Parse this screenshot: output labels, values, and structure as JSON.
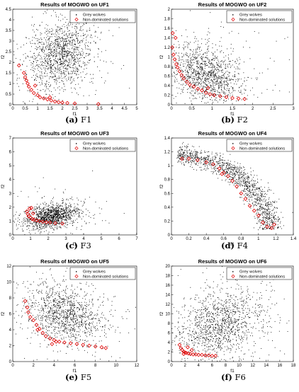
{
  "chart_data": [
    {
      "type": "scatter",
      "title": "Results of MOGWO on UF1",
      "xlabel": "f1",
      "ylabel": "f2",
      "xlim": [
        0,
        5
      ],
      "ylim": [
        0,
        4.5
      ],
      "xticks": [
        "0",
        "0.5",
        "1",
        "1.5",
        "2",
        "2.5",
        "3",
        "3.5",
        "4",
        "4.5",
        "5"
      ],
      "yticks": [
        "0",
        "0.5",
        "1",
        "1.5",
        "2",
        "2.5",
        "3",
        "3.5",
        "4",
        "4.5"
      ],
      "caption_letter": "(a)",
      "caption_text": "F1",
      "legend": [
        "Grey wolves",
        "Non-dominated solutions"
      ],
      "cloud": {
        "count": 1400,
        "cx": 1.9,
        "cy": 2.3,
        "sx": 0.65,
        "sy": 0.85,
        "rho": 0.25
      },
      "series": [
        {
          "name": "Non-dominated solutions",
          "points": [
            [
              0.25,
              1.85
            ],
            [
              0.45,
              1.5
            ],
            [
              0.5,
              1.3
            ],
            [
              0.55,
              1.15
            ],
            [
              0.6,
              1.0
            ],
            [
              0.65,
              0.85
            ],
            [
              0.75,
              0.7
            ],
            [
              0.85,
              0.55
            ],
            [
              1.0,
              0.45
            ],
            [
              1.1,
              0.35
            ],
            [
              1.25,
              0.3
            ],
            [
              1.4,
              0.25
            ],
            [
              1.55,
              0.2
            ],
            [
              1.7,
              0.15
            ],
            [
              1.85,
              0.12
            ],
            [
              2.0,
              0.1
            ],
            [
              2.2,
              0.08
            ],
            [
              2.5,
              0.06
            ],
            [
              1.5,
              0.35
            ],
            [
              0.9,
              0.9
            ],
            [
              3.45,
              0.03
            ]
          ]
        }
      ]
    },
    {
      "type": "scatter",
      "title": "Results of MOGWO on UF2",
      "xlabel": "f1",
      "ylabel": "f2",
      "xlim": [
        0,
        3
      ],
      "ylim": [
        0,
        2
      ],
      "xticks": [
        "0",
        "0.5",
        "1",
        "1.5",
        "2",
        "2.5",
        "3"
      ],
      "yticks": [
        "0",
        "0.2",
        "0.4",
        "0.6",
        "0.8",
        "1",
        "1.2",
        "1.4",
        "1.6",
        "1.8",
        "2"
      ],
      "caption_letter": "(b)",
      "caption_text": "F2",
      "legend": [
        "Grey wolves",
        "Non-dominated solutions"
      ],
      "cloud": {
        "count": 1300,
        "cx": 0.85,
        "cy": 0.62,
        "sx": 0.42,
        "sy": 0.3,
        "rho": -0.3
      },
      "series": [
        {
          "name": "Non-dominated solutions",
          "points": [
            [
              0.02,
              1.2
            ],
            [
              0.05,
              1.05
            ],
            [
              0.08,
              0.95
            ],
            [
              0.12,
              0.85
            ],
            [
              0.15,
              0.78
            ],
            [
              0.2,
              0.7
            ],
            [
              0.25,
              0.62
            ],
            [
              0.3,
              0.55
            ],
            [
              0.38,
              0.48
            ],
            [
              0.45,
              0.42
            ],
            [
              0.55,
              0.38
            ],
            [
              0.65,
              0.33
            ],
            [
              0.75,
              0.3
            ],
            [
              0.85,
              0.25
            ],
            [
              0.95,
              0.22
            ],
            [
              1.05,
              0.2
            ],
            [
              1.2,
              0.18
            ],
            [
              1.35,
              0.16
            ],
            [
              1.5,
              0.14
            ],
            [
              1.65,
              0.13
            ],
            [
              1.8,
              0.12
            ],
            [
              0.1,
              1.4
            ],
            [
              0.03,
              1.5
            ],
            [
              0.9,
              0.35
            ]
          ]
        }
      ]
    },
    {
      "type": "scatter",
      "title": "Results of MOGWO on UF3",
      "xlabel": "f1",
      "ylabel": "f2",
      "xlim": [
        0,
        7
      ],
      "ylim": [
        0,
        7
      ],
      "xticks": [
        "0",
        "1",
        "2",
        "3",
        "4",
        "5",
        "6",
        "7"
      ],
      "yticks": [
        "0",
        "1",
        "2",
        "3",
        "4",
        "5",
        "6",
        "7"
      ],
      "caption_letter": "(c)",
      "caption_text": "F3",
      "legend": [
        "Grey wolves",
        "Non-dominated solutions"
      ],
      "cloud": {
        "count": 1300,
        "cx": 2.2,
        "cy": 1.35,
        "sx": 0.75,
        "sy": 0.45,
        "rho": 0.35
      },
      "series": [
        {
          "name": "Non-dominated solutions",
          "points": [
            [
              0.8,
              1.7
            ],
            [
              0.85,
              1.5
            ],
            [
              0.9,
              1.35
            ],
            [
              1.0,
              1.25
            ],
            [
              1.1,
              1.15
            ],
            [
              1.2,
              1.1
            ],
            [
              1.35,
              1.05
            ],
            [
              1.5,
              1.0
            ],
            [
              1.7,
              0.95
            ],
            [
              1.9,
              0.92
            ],
            [
              2.1,
              0.9
            ],
            [
              2.4,
              0.85
            ],
            [
              2.8,
              0.82
            ],
            [
              1.05,
              1.95
            ],
            [
              0.95,
              1.9
            ],
            [
              1.15,
              1.55
            ]
          ]
        }
      ]
    },
    {
      "type": "scatter",
      "title": "Results of MOGWO on UF4",
      "xlabel": "f1",
      "ylabel": "f2",
      "xlim": [
        0,
        1.4
      ],
      "ylim": [
        0,
        1.4
      ],
      "xticks": [
        "0",
        "0.2",
        "0.4",
        "0.6",
        "0.8",
        "1",
        "1.2",
        "1.4"
      ],
      "yticks": [
        "0",
        "0.2",
        "0.4",
        "0.6",
        "0.8",
        "1",
        "1.2",
        "1.4"
      ],
      "caption_letter": "(d)",
      "caption_text": "F4",
      "legend": [
        "Grey wolves",
        "Non-dominated solutions"
      ],
      "arc": {
        "count": 1300,
        "a": 1.12,
        "b": 1.15,
        "spread": 0.06
      },
      "series": [
        {
          "name": "Non-dominated solutions",
          "points": [
            [
              0.12,
              1.1
            ],
            [
              0.2,
              1.1
            ],
            [
              0.3,
              1.08
            ],
            [
              0.4,
              1.05
            ],
            [
              0.48,
              1.02
            ],
            [
              0.55,
              0.96
            ],
            [
              0.6,
              0.9
            ],
            [
              0.65,
              0.85
            ],
            [
              0.7,
              0.78
            ],
            [
              0.75,
              0.7
            ],
            [
              0.8,
              0.6
            ],
            [
              0.85,
              0.52
            ],
            [
              0.9,
              0.42
            ],
            [
              0.95,
              0.35
            ],
            [
              1.0,
              0.28
            ],
            [
              1.05,
              0.18
            ],
            [
              1.1,
              0.12
            ],
            [
              1.15,
              0.1
            ],
            [
              1.18,
              0.15
            ],
            [
              0.58,
              0.88
            ]
          ]
        }
      ]
    },
    {
      "type": "scatter",
      "title": "Results of MOGWO on UF5",
      "xlabel": "f1",
      "ylabel": "f2",
      "xlim": [
        0,
        12
      ],
      "ylim": [
        0,
        12
      ],
      "xticks": [
        "0",
        "2",
        "4",
        "6",
        "8",
        "10",
        "12"
      ],
      "yticks": [
        "0",
        "2",
        "4",
        "6",
        "8",
        "10",
        "12"
      ],
      "caption_letter": "(e)",
      "caption_text": "F5",
      "legend": [
        "Grey wolves",
        "Non-dominated solutions"
      ],
      "cloud": {
        "count": 1300,
        "cx": 5.0,
        "cy": 6.0,
        "sx": 1.9,
        "sy": 1.9,
        "rho": -0.3
      },
      "series": [
        {
          "name": "Non-dominated solutions",
          "points": [
            [
              1.2,
              7.6
            ],
            [
              1.4,
              6.8
            ],
            [
              1.5,
              6.2
            ],
            [
              1.7,
              5.6
            ],
            [
              2.0,
              5.2
            ],
            [
              2.3,
              4.6
            ],
            [
              2.6,
              4.1
            ],
            [
              2.9,
              3.6
            ],
            [
              3.2,
              3.2
            ],
            [
              3.6,
              2.9
            ],
            [
              4.0,
              2.7
            ],
            [
              4.5,
              2.5
            ],
            [
              5.0,
              2.4
            ],
            [
              5.6,
              2.3
            ],
            [
              6.2,
              2.2
            ],
            [
              6.8,
              2.1
            ],
            [
              7.4,
              2.0
            ],
            [
              8.0,
              1.9
            ],
            [
              8.6,
              1.8
            ],
            [
              9.0,
              1.7
            ],
            [
              3.8,
              2.2
            ],
            [
              4.2,
              2.5
            ],
            [
              2.4,
              4.0
            ]
          ]
        }
      ]
    },
    {
      "type": "scatter",
      "title": "Results of MOGWO on UF6",
      "xlabel": "f1",
      "ylabel": "f2",
      "xlim": [
        0,
        18
      ],
      "ylim": [
        0,
        20
      ],
      "xticks": [
        "0",
        "2",
        "4",
        "6",
        "8",
        "10",
        "12",
        "14",
        "16",
        "18"
      ],
      "yticks": [
        "0",
        "2",
        "4",
        "6",
        "8",
        "10",
        "12",
        "14",
        "16",
        "18",
        "20"
      ],
      "caption_letter": "(f)",
      "caption_text": "F6",
      "legend": [
        "Grey wolves",
        "Non-dominated solutions"
      ],
      "cloud": {
        "count": 1400,
        "cx": 7.0,
        "cy": 7.5,
        "sx": 3.2,
        "sy": 3.8,
        "rho": 0.25
      },
      "series": [
        {
          "name": "Non-dominated solutions",
          "points": [
            [
              1.2,
              3.5
            ],
            [
              1.4,
              2.8
            ],
            [
              1.6,
              2.4
            ],
            [
              1.8,
              2.1
            ],
            [
              2.0,
              1.9
            ],
            [
              2.2,
              1.8
            ],
            [
              2.5,
              1.7
            ],
            [
              2.8,
              1.6
            ],
            [
              3.2,
              1.5
            ],
            [
              3.6,
              1.5
            ],
            [
              4.0,
              1.4
            ],
            [
              4.5,
              1.4
            ],
            [
              5.0,
              1.3
            ],
            [
              5.5,
              1.3
            ],
            [
              6.0,
              1.2
            ],
            [
              6.5,
              1.2
            ],
            [
              3.0,
              2.4
            ],
            [
              2.4,
              3.0
            ],
            [
              1.8,
              1.6
            ]
          ]
        }
      ]
    }
  ]
}
